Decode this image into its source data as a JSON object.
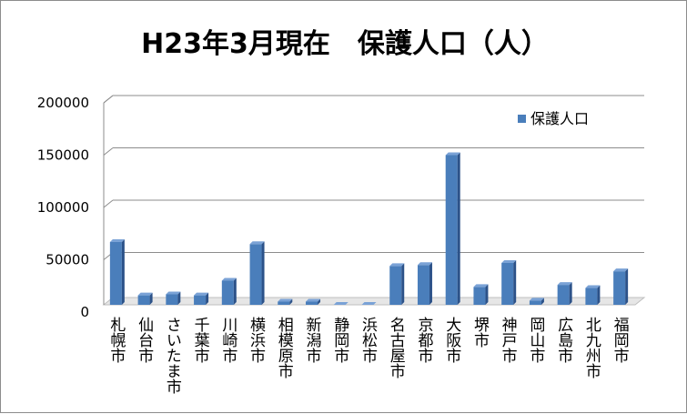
{
  "chart_data": {
    "type": "bar",
    "title": "H23年3月現在　保護人口（人）",
    "categories": [
      "札幌市",
      "仙台市",
      "さいたま市",
      "千葉市",
      "川崎市",
      "横浜市",
      "相模原市",
      "新潟市",
      "静岡市",
      "浜松市",
      "名古屋市",
      "京都市",
      "大阪市",
      "堺市",
      "神戸市",
      "岡山市",
      "広島市",
      "北九州市",
      "福岡市"
    ],
    "series": [
      {
        "name": "保護人口",
        "values": [
          67000,
          16000,
          17000,
          16000,
          30000,
          65000,
          10000,
          10000,
          7000,
          7000,
          44000,
          45000,
          150000,
          24000,
          47000,
          11000,
          26000,
          23000,
          39000
        ]
      }
    ],
    "y_ticks": [
      "0",
      "50000",
      "100000",
      "150000",
      "200000"
    ],
    "ylim": [
      0,
      200000
    ],
    "grid": true,
    "legend": "top-right",
    "colors": {
      "bar_front": "#4a7ebb",
      "bar_side": "#2c5289",
      "bar_top": "#7aa2d6",
      "grid": "#8c8c8c",
      "floor": "#bfbfbf"
    }
  }
}
